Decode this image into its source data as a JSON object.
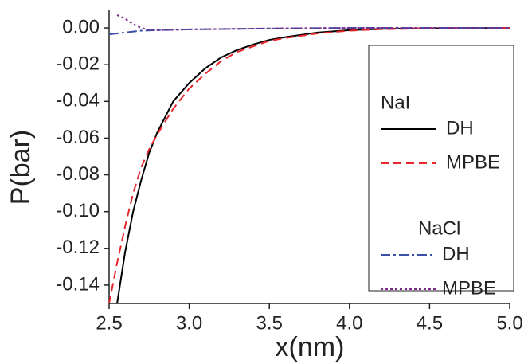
{
  "chart_data": {
    "type": "line",
    "xlabel": "x(nm)",
    "ylabel": "P(bar)",
    "xlim": [
      2.5,
      5.0
    ],
    "ylim": [
      -0.15,
      0.01
    ],
    "xticks": [
      2.5,
      {
        "value": 3,
        "label": "3.0"
      },
      3.5,
      {
        "value": 4,
        "label": "4.0"
      },
      4.5,
      {
        "value": 5,
        "label": "5.0"
      }
    ],
    "yticks": [
      {
        "value": 0,
        "label": "0.00"
      },
      {
        "value": -0.02,
        "label": "-0.02"
      },
      {
        "value": -0.04,
        "label": "-0.04"
      },
      {
        "value": -0.06,
        "label": "-0.06"
      },
      {
        "value": -0.08,
        "label": "-0.08"
      },
      {
        "value": -0.1,
        "label": "-0.10"
      },
      {
        "value": -0.12,
        "label": "-0.12"
      },
      {
        "value": -0.14,
        "label": "-0.14"
      }
    ],
    "legend": "right",
    "series": [
      {
        "group": "NaI",
        "name": "DH",
        "color": "#000000",
        "linestyle": "solid",
        "x": [
          2.55,
          2.6,
          2.65,
          2.7,
          2.75,
          2.8,
          2.9,
          3.0,
          3.1,
          3.2,
          3.3,
          3.4,
          3.5,
          3.6,
          3.8,
          4.0,
          4.2,
          4.5,
          5.0
        ],
        "values": [
          -0.15,
          -0.122,
          -0.1,
          -0.083,
          -0.068,
          -0.057,
          -0.04,
          -0.03,
          -0.022,
          -0.016,
          -0.012,
          -0.009,
          -0.0065,
          -0.005,
          -0.0025,
          -0.0012,
          -0.0005,
          -0.0002,
          0
        ]
      },
      {
        "group": "NaI",
        "name": "MPBE",
        "color": "#e8252a",
        "linestyle": "dashed",
        "x": [
          2.5,
          2.55,
          2.6,
          2.65,
          2.7,
          2.75,
          2.8,
          2.9,
          3.0,
          3.1,
          3.2,
          3.3,
          3.4,
          3.5,
          3.6,
          3.8,
          4.0,
          4.2,
          4.5,
          5.0
        ],
        "values": [
          -0.15,
          -0.128,
          -0.108,
          -0.09,
          -0.076,
          -0.066,
          -0.058,
          -0.044,
          -0.033,
          -0.025,
          -0.018,
          -0.013,
          -0.01,
          -0.007,
          -0.0055,
          -0.003,
          -0.0015,
          -0.0007,
          -0.0003,
          0
        ]
      },
      {
        "group": "NaCl",
        "name": "DH",
        "color": "#3a4fa8",
        "linestyle": "dashdot",
        "x": [
          2.5,
          2.6,
          2.7,
          2.8,
          3.0,
          3.5,
          4.0,
          5.0
        ],
        "values": [
          -0.0035,
          -0.0025,
          -0.0015,
          -0.0012,
          -0.0008,
          -0.0003,
          0,
          0
        ]
      },
      {
        "group": "NaCl",
        "name": "MPBE",
        "color": "#7b2a8a",
        "linestyle": "dotted",
        "x": [
          2.55,
          2.6,
          2.65,
          2.7,
          2.75,
          2.8,
          3.0,
          3.5,
          4.0,
          5.0
        ],
        "values": [
          0.007,
          0.005,
          0.002,
          0,
          -0.001,
          -0.0012,
          -0.0008,
          -0.0003,
          0,
          0
        ]
      }
    ]
  }
}
